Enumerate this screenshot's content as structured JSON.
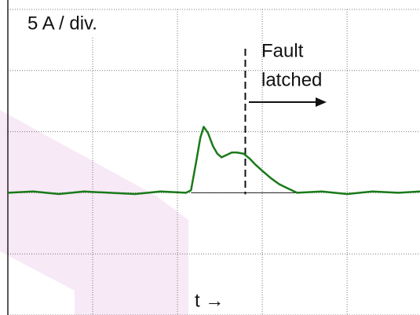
{
  "chart_data": {
    "type": "line",
    "annotations": {
      "scale": "5 A / div.",
      "fault_1": "Fault",
      "fault_2": "latched",
      "time": "t →"
    },
    "fault_x": 2.8,
    "x": [
      0,
      0.3,
      0.6,
      0.9,
      1.2,
      1.5,
      1.8,
      2.1,
      2.16,
      2.22,
      2.27,
      2.31,
      2.36,
      2.42,
      2.47,
      2.52,
      2.58,
      2.64,
      2.7,
      2.78,
      2.85,
      2.92,
      3.0,
      3.1,
      3.2,
      3.29,
      3.41,
      3.7,
      4.0,
      4.3,
      4.6,
      4.86
    ],
    "series": [
      {
        "color": "#1a7a1a",
        "values": [
          0,
          0.1,
          -0.1,
          0.1,
          0,
          -0.1,
          0.1,
          0,
          0.2,
          2.5,
          4.5,
          5.4,
          4.9,
          3.8,
          3.2,
          2.9,
          3.1,
          3.3,
          3.3,
          3.2,
          2.8,
          2.3,
          1.8,
          1.2,
          0.7,
          0.4,
          0,
          0.1,
          -0.1,
          0.1,
          0,
          0.1
        ]
      }
    ],
    "xlim": [
      0,
      4.86
    ],
    "xticks": [
      0,
      1,
      2,
      3,
      4
    ],
    "ylim": [
      -10,
      15
    ],
    "yticks": [
      -10,
      -5,
      0,
      5,
      10,
      15
    ],
    "grid": true
  }
}
